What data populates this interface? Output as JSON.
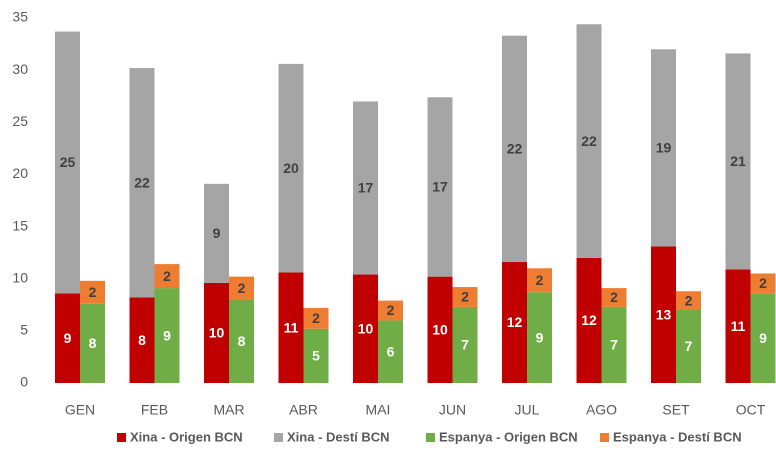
{
  "chart_data": {
    "type": "stacked-grouped-bar",
    "categories": [
      "GEN",
      "FEB",
      "MAR",
      "ABR",
      "MAI",
      "JUN",
      "JUL",
      "AGO",
      "SET",
      "OCT"
    ],
    "series": [
      {
        "name": "Xina - Origen BCN",
        "color": "#c00000",
        "stack": 0,
        "values": [
          8.6,
          8.2,
          9.6,
          10.6,
          10.4,
          10.2,
          11.6,
          12.0,
          13.1,
          10.9
        ],
        "value_labels": [
          "9",
          "8",
          "10",
          "11",
          "10",
          "10",
          "12",
          "12",
          "13",
          "11"
        ]
      },
      {
        "name": "Xina - Destí BCN",
        "color": "#a5a5a5",
        "stack": 0,
        "values": [
          25.1,
          22.0,
          9.5,
          20.0,
          16.6,
          17.2,
          21.7,
          22.4,
          18.9,
          20.7
        ],
        "value_labels": [
          "25",
          "22",
          "9",
          "20",
          "17",
          "17",
          "22",
          "22",
          "19",
          "21"
        ]
      },
      {
        "name": "Espanya - Origen BCN",
        "color": "#70ad47",
        "stack": 1,
        "values": [
          7.6,
          9.1,
          8.0,
          5.2,
          6.0,
          7.3,
          8.7,
          7.3,
          7.0,
          8.6
        ],
        "value_labels": [
          "8",
          "9",
          "8",
          "5",
          "6",
          "7",
          "9",
          "7",
          "7",
          "9"
        ]
      },
      {
        "name": "Espanya - Destí BCN",
        "color": "#ed7d31",
        "stack": 1,
        "values": [
          2.2,
          2.3,
          2.2,
          2.0,
          1.9,
          1.9,
          2.3,
          1.8,
          1.8,
          1.9
        ],
        "value_labels": [
          "2",
          "2",
          "2",
          "2",
          "2",
          "2",
          "2",
          "2",
          "2",
          "2"
        ]
      }
    ],
    "ylim": [
      0,
      35
    ],
    "yticks": [
      0,
      5,
      10,
      15,
      20,
      25,
      30,
      35
    ],
    "grid": false,
    "legend": "bottom"
  }
}
